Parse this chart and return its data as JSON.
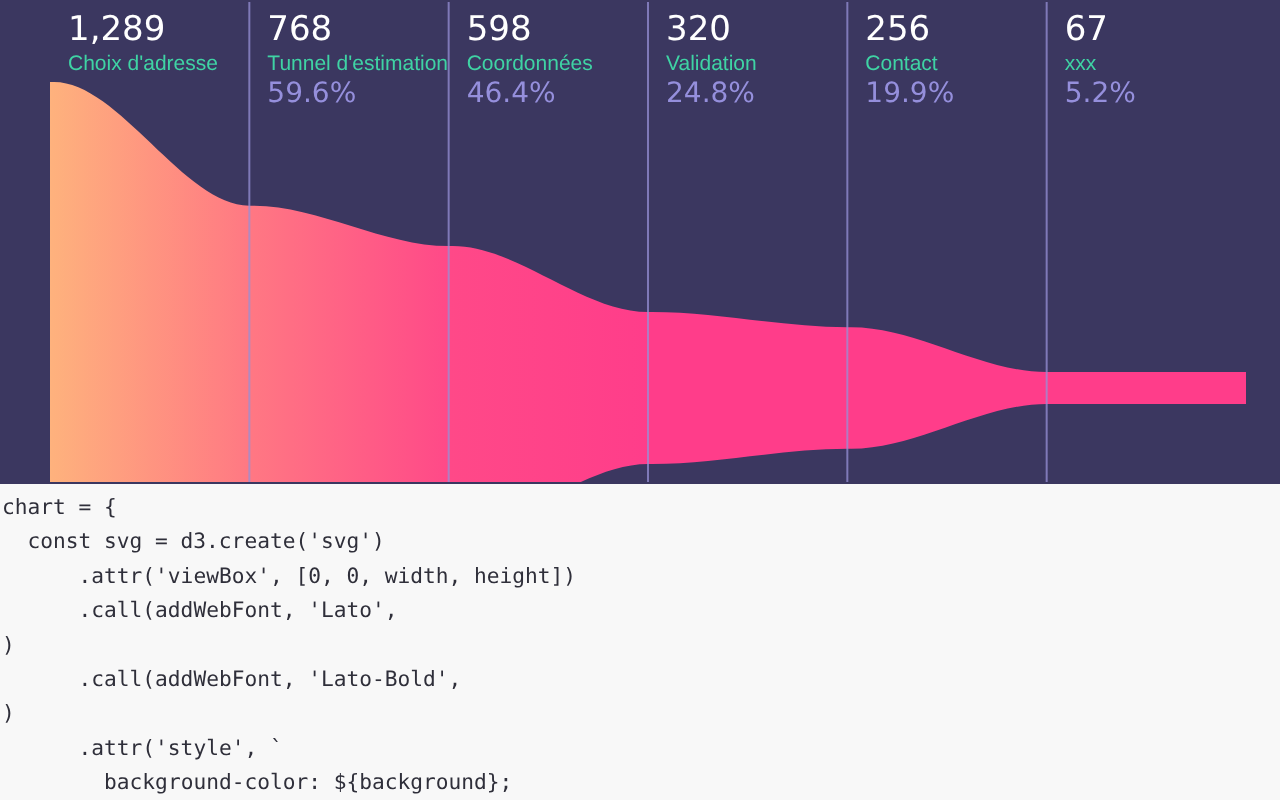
{
  "chart_data": {
    "type": "other",
    "categories": [
      "Choix d'adresse",
      "Tunnel d'estimation",
      "Coordonnées",
      "Validation",
      "Contact",
      "xxx"
    ],
    "values": [
      1289,
      768,
      598,
      320,
      256,
      67
    ],
    "value_labels": [
      "1,289",
      "768",
      "598",
      "320",
      "256",
      "67"
    ],
    "colors": [
      "#feb27d",
      "#ff7883",
      "#ff4988",
      "#ff3d8a",
      "#ff3d8a",
      "#ff3d8a"
    ],
    "annotations": [
      {
        "text": "59.6%",
        "x": "Tunnel d'estimation"
      },
      {
        "text": "46.4%",
        "x": "Coordonnées"
      },
      {
        "text": "24.8%",
        "x": "Validation"
      },
      {
        "text": "19.9%",
        "x": "Contact"
      },
      {
        "text": "5.2%",
        "x": "xxx"
      },
      "chart = {",
      "  const svg = d3.create('svg')",
      "      .attr('viewBox', [0, 0, width, height])",
      "      .call(addWebFont, 'Lato',",
      ")",
      "      .call(addWebFont, 'Lato-Bold',",
      ")",
      "      .attr('style', `",
      "        background-color: ${background};"
    ]
  }
}
